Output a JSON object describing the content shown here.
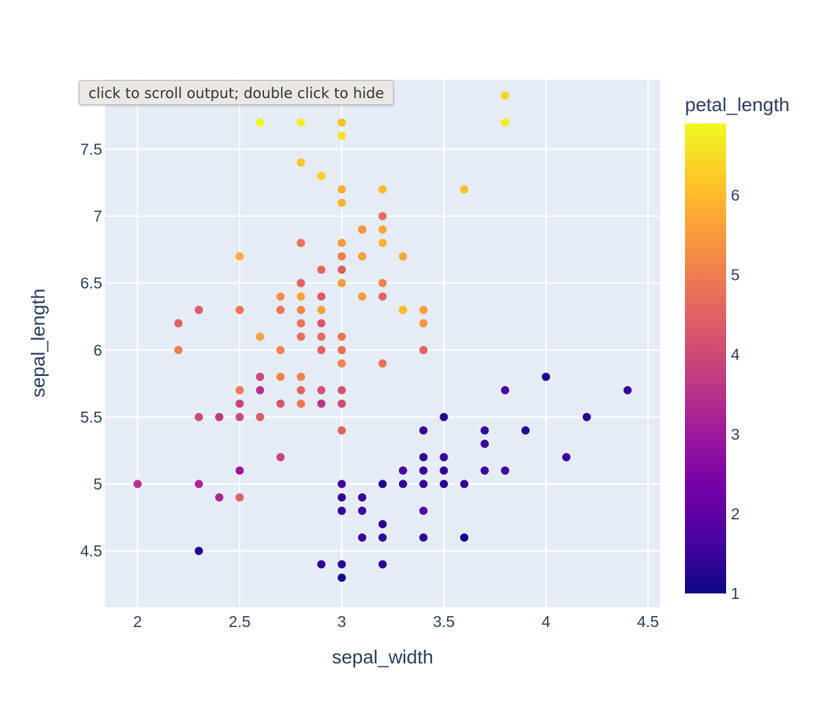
{
  "tooltip": {
    "text": "click to scroll output; double click to hide"
  },
  "chart_data": {
    "type": "scatter",
    "xlabel": "sepal_width",
    "ylabel": "sepal_length",
    "xlim": [
      1.84,
      4.56
    ],
    "ylim": [
      4.08,
      8.02
    ],
    "xticks": [
      2,
      2.5,
      3,
      3.5,
      4,
      4.5
    ],
    "xtick_labels": [
      "2",
      "2.5",
      "3",
      "3.5",
      "4",
      "4.5"
    ],
    "yticks": [
      4.5,
      5,
      5.5,
      6,
      6.5,
      7,
      7.5
    ],
    "ytick_labels": [
      "4.5",
      "5",
      "5.5",
      "6",
      "6.5",
      "7",
      "7.5"
    ],
    "grid": true,
    "plot_background": "#e5ecf6",
    "colorbar": {
      "title": "petal_length",
      "range": [
        1,
        6.9
      ],
      "ticks": [
        1,
        2,
        3,
        4,
        5,
        6
      ],
      "tick_labels": [
        "1",
        "2",
        "3",
        "4",
        "5",
        "6"
      ],
      "colorscale": [
        "#0d0887",
        "#46039f",
        "#7201a8",
        "#9c179e",
        "#bd3786",
        "#d8576b",
        "#ed7953",
        "#fb9f3a",
        "#fdca26",
        "#f0f921"
      ]
    },
    "points": [
      [
        3.8,
        7.9,
        6.4
      ],
      [
        2.6,
        7.7,
        6.9
      ],
      [
        2.8,
        7.7,
        6.7
      ],
      [
        3.0,
        7.7,
        6.1
      ],
      [
        3.8,
        7.7,
        6.7
      ],
      [
        3.0,
        7.6,
        6.6
      ],
      [
        2.8,
        7.4,
        6.1
      ],
      [
        2.9,
        7.3,
        6.3
      ],
      [
        3.0,
        7.2,
        5.8
      ],
      [
        3.2,
        7.2,
        6.0
      ],
      [
        3.6,
        7.2,
        6.1
      ],
      [
        3.0,
        7.1,
        5.9
      ],
      [
        3.2,
        7.0,
        4.7
      ],
      [
        3.1,
        6.9,
        4.9
      ],
      [
        3.1,
        6.9,
        5.4
      ],
      [
        3.2,
        6.9,
        5.7
      ],
      [
        2.5,
        6.7,
        5.8
      ],
      [
        3.0,
        6.7,
        5.0
      ],
      [
        3.1,
        6.7,
        4.4
      ],
      [
        3.1,
        6.7,
        5.6
      ],
      [
        3.3,
        6.7,
        5.7
      ],
      [
        2.8,
        6.8,
        4.8
      ],
      [
        3.0,
        6.8,
        5.5
      ],
      [
        3.2,
        6.8,
        5.9
      ],
      [
        2.9,
        6.6,
        4.6
      ],
      [
        3.0,
        6.6,
        4.4
      ],
      [
        2.8,
        6.5,
        4.6
      ],
      [
        3.0,
        6.5,
        5.5
      ],
      [
        3.2,
        6.5,
        5.1
      ],
      [
        2.7,
        6.4,
        5.3
      ],
      [
        2.8,
        6.4,
        5.6
      ],
      [
        2.9,
        6.4,
        4.3
      ],
      [
        3.1,
        6.4,
        5.5
      ],
      [
        3.2,
        6.4,
        4.5
      ],
      [
        2.3,
        6.3,
        4.4
      ],
      [
        2.5,
        6.3,
        4.9
      ],
      [
        2.7,
        6.3,
        4.9
      ],
      [
        2.8,
        6.3,
        5.1
      ],
      [
        2.9,
        6.3,
        5.6
      ],
      [
        3.3,
        6.3,
        6.0
      ],
      [
        3.4,
        6.3,
        5.6
      ],
      [
        2.2,
        6.2,
        4.5
      ],
      [
        2.8,
        6.2,
        4.8
      ],
      [
        2.9,
        6.2,
        4.3
      ],
      [
        3.4,
        6.2,
        5.4
      ],
      [
        2.6,
        6.1,
        5.6
      ],
      [
        2.8,
        6.1,
        4.7
      ],
      [
        2.9,
        6.1,
        4.7
      ],
      [
        3.0,
        6.1,
        4.9
      ],
      [
        2.2,
        6.0,
        5.0
      ],
      [
        2.7,
        6.0,
        5.1
      ],
      [
        2.9,
        6.0,
        4.5
      ],
      [
        3.0,
        6.0,
        4.8
      ],
      [
        3.4,
        6.0,
        4.5
      ],
      [
        3.0,
        5.9,
        5.1
      ],
      [
        3.2,
        5.9,
        4.8
      ],
      [
        2.6,
        5.8,
        4.0
      ],
      [
        2.7,
        5.8,
        5.1
      ],
      [
        2.8,
        5.8,
        5.1
      ],
      [
        4.0,
        5.8,
        1.2
      ],
      [
        2.5,
        5.7,
        5.0
      ],
      [
        2.6,
        5.7,
        3.5
      ],
      [
        2.8,
        5.7,
        4.5
      ],
      [
        2.9,
        5.7,
        4.2
      ],
      [
        3.0,
        5.7,
        4.2
      ],
      [
        3.8,
        5.7,
        1.7
      ],
      [
        4.4,
        5.7,
        1.5
      ],
      [
        2.5,
        5.6,
        3.9
      ],
      [
        2.7,
        5.6,
        4.2
      ],
      [
        2.8,
        5.6,
        4.9
      ],
      [
        2.9,
        5.6,
        3.6
      ],
      [
        3.0,
        5.6,
        4.1
      ],
      [
        2.3,
        5.5,
        4.0
      ],
      [
        2.4,
        5.5,
        3.7
      ],
      [
        2.5,
        5.5,
        4.0
      ],
      [
        2.6,
        5.5,
        4.4
      ],
      [
        3.5,
        5.5,
        1.3
      ],
      [
        4.2,
        5.5,
        1.4
      ],
      [
        3.0,
        5.4,
        4.5
      ],
      [
        3.4,
        5.4,
        1.5
      ],
      [
        3.7,
        5.4,
        1.5
      ],
      [
        3.9,
        5.4,
        1.3
      ],
      [
        3.7,
        5.3,
        1.5
      ],
      [
        2.7,
        5.2,
        3.9
      ],
      [
        3.4,
        5.2,
        1.4
      ],
      [
        3.5,
        5.2,
        1.5
      ],
      [
        4.1,
        5.2,
        1.5
      ],
      [
        2.5,
        5.1,
        3.0
      ],
      [
        3.3,
        5.1,
        1.7
      ],
      [
        3.4,
        5.1,
        1.5
      ],
      [
        3.5,
        5.1,
        1.4
      ],
      [
        3.7,
        5.1,
        1.5
      ],
      [
        3.8,
        5.1,
        1.6
      ],
      [
        2.0,
        5.0,
        3.5
      ],
      [
        2.3,
        5.0,
        3.3
      ],
      [
        3.0,
        5.0,
        1.6
      ],
      [
        3.2,
        5.0,
        1.2
      ],
      [
        3.3,
        5.0,
        1.4
      ],
      [
        3.4,
        5.0,
        1.5
      ],
      [
        3.5,
        5.0,
        1.3
      ],
      [
        3.6,
        5.0,
        1.4
      ],
      [
        2.4,
        4.9,
        3.3
      ],
      [
        2.5,
        4.9,
        4.5
      ],
      [
        3.0,
        4.9,
        1.4
      ],
      [
        3.1,
        4.9,
        1.5
      ],
      [
        3.0,
        4.8,
        1.4
      ],
      [
        3.1,
        4.8,
        1.6
      ],
      [
        3.4,
        4.8,
        1.9
      ],
      [
        3.2,
        4.7,
        1.3
      ],
      [
        3.1,
        4.6,
        1.5
      ],
      [
        3.2,
        4.6,
        1.4
      ],
      [
        3.4,
        4.6,
        1.4
      ],
      [
        3.6,
        4.6,
        1.0
      ],
      [
        2.3,
        4.5,
        1.3
      ],
      [
        2.9,
        4.4,
        1.4
      ],
      [
        3.0,
        4.4,
        1.3
      ],
      [
        3.2,
        4.4,
        1.3
      ],
      [
        3.0,
        4.3,
        1.1
      ]
    ]
  }
}
